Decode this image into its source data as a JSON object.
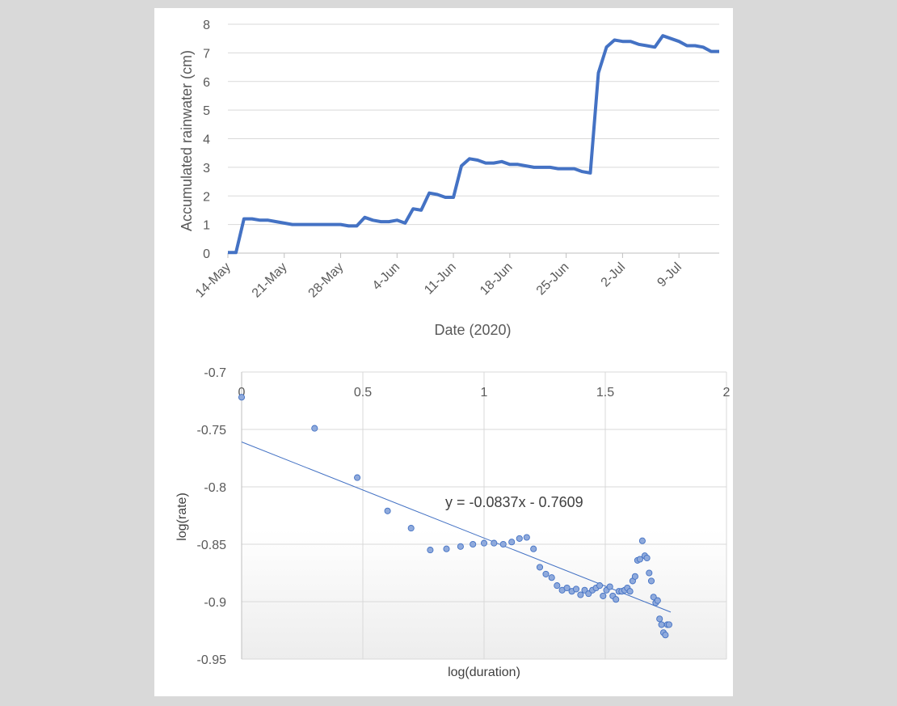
{
  "chart_data": [
    {
      "type": "line",
      "xlabel": "Date (2020)",
      "ylabel": "Accumulated rainwater (cm)",
      "ylim": [
        0,
        8
      ],
      "yticks": [
        "0",
        "1",
        "2",
        "3",
        "4",
        "5",
        "6",
        "7",
        "8"
      ],
      "xticks": [
        "14-May",
        "21-May",
        "28-May",
        "4-Jun",
        "11-Jun",
        "18-Jun",
        "25-Jun",
        "2-Jul",
        "9-Jul"
      ],
      "xtick_dates": [
        "2020-05-14",
        "2020-05-21",
        "2020-05-28",
        "2020-06-04",
        "2020-06-11",
        "2020-06-18",
        "2020-06-25",
        "2020-07-02",
        "2020-07-09"
      ],
      "xlim": [
        "2020-05-14",
        "2020-07-14"
      ],
      "grid": true,
      "color": "#4472c4",
      "series": [
        {
          "x": [
            "2020-05-14",
            "2020-05-15",
            "2020-05-16",
            "2020-05-17",
            "2020-05-18",
            "2020-05-19",
            "2020-05-20",
            "2020-05-21",
            "2020-05-22",
            "2020-05-23",
            "2020-05-24",
            "2020-05-25",
            "2020-05-26",
            "2020-05-27",
            "2020-05-28",
            "2020-05-29",
            "2020-05-30",
            "2020-05-31",
            "2020-06-01",
            "2020-06-02",
            "2020-06-03",
            "2020-06-04",
            "2020-06-05",
            "2020-06-06",
            "2020-06-07",
            "2020-06-08",
            "2020-06-09",
            "2020-06-10",
            "2020-06-11",
            "2020-06-12",
            "2020-06-13",
            "2020-06-14",
            "2020-06-15",
            "2020-06-16",
            "2020-06-17",
            "2020-06-18",
            "2020-06-19",
            "2020-06-20",
            "2020-06-21",
            "2020-06-22",
            "2020-06-23",
            "2020-06-24",
            "2020-06-25",
            "2020-06-26",
            "2020-06-27",
            "2020-06-28",
            "2020-06-29",
            "2020-06-30",
            "2020-07-01",
            "2020-07-02",
            "2020-07-03",
            "2020-07-04",
            "2020-07-05",
            "2020-07-06",
            "2020-07-07",
            "2020-07-08",
            "2020-07-09",
            "2020-07-10",
            "2020-07-11",
            "2020-07-12",
            "2020-07-13",
            "2020-07-14"
          ],
          "y": [
            0.02,
            0.02,
            1.2,
            1.2,
            1.15,
            1.15,
            1.1,
            1.05,
            1.0,
            1.0,
            1.0,
            1.0,
            1.0,
            1.0,
            1.0,
            0.95,
            0.95,
            1.25,
            1.15,
            1.1,
            1.1,
            1.15,
            1.05,
            1.55,
            1.5,
            2.1,
            2.05,
            1.95,
            1.95,
            3.05,
            3.3,
            3.25,
            3.15,
            3.15,
            3.2,
            3.1,
            3.1,
            3.05,
            3.0,
            3.0,
            3.0,
            2.95,
            2.95,
            2.95,
            2.85,
            2.8,
            6.3,
            7.2,
            7.45,
            7.4,
            7.4,
            7.3,
            7.25,
            7.2,
            7.6,
            7.5,
            7.4,
            7.25,
            7.25,
            7.2,
            7.05,
            7.05
          ]
        }
      ]
    },
    {
      "type": "scatter",
      "xlabel": "log(duration)",
      "ylabel": "log(rate)",
      "xlim": [
        0,
        2
      ],
      "ylim": [
        -0.95,
        -0.7
      ],
      "xticks": [
        "0",
        "0.5",
        "1",
        "1.5",
        "2"
      ],
      "yticks": [
        "-0.7",
        "-0.75",
        "-0.8",
        "-0.85",
        "-0.9",
        "-0.95"
      ],
      "grid": true,
      "marker_color": "#8faadc",
      "marker_edge": "#4472c4",
      "trendline": {
        "slope": -0.0837,
        "intercept": -0.7609,
        "label": "y = -0.0837x - 0.7609",
        "x_range": [
          0,
          1.77
        ]
      },
      "points": {
        "x": [
          0,
          0.301,
          0.477,
          0.602,
          0.699,
          0.778,
          0.845,
          0.903,
          0.954,
          1.0,
          1.041,
          1.079,
          1.114,
          1.146,
          1.176,
          1.204,
          1.23,
          1.255,
          1.279,
          1.301,
          1.322,
          1.342,
          1.362,
          1.38,
          1.398,
          1.415,
          1.431,
          1.447,
          1.462,
          1.477,
          1.491,
          1.505,
          1.519,
          1.531,
          1.544,
          1.556,
          1.568,
          1.58,
          1.591,
          1.602,
          1.613,
          1.623,
          1.633,
          1.643,
          1.653,
          1.663,
          1.672,
          1.681,
          1.69,
          1.699,
          1.708,
          1.716,
          1.724,
          1.732,
          1.74,
          1.748,
          1.756,
          1.763
        ],
        "y": [
          -0.722,
          -0.749,
          -0.792,
          -0.821,
          -0.836,
          -0.855,
          -0.854,
          -0.852,
          -0.85,
          -0.849,
          -0.849,
          -0.85,
          -0.848,
          -0.845,
          -0.844,
          -0.854,
          -0.87,
          -0.876,
          -0.879,
          -0.886,
          -0.89,
          -0.888,
          -0.891,
          -0.889,
          -0.894,
          -0.89,
          -0.893,
          -0.89,
          -0.888,
          -0.886,
          -0.895,
          -0.89,
          -0.887,
          -0.895,
          -0.898,
          -0.891,
          -0.891,
          -0.89,
          -0.888,
          -0.891,
          -0.882,
          -0.878,
          -0.864,
          -0.863,
          -0.847,
          -0.86,
          -0.862,
          -0.875,
          -0.882,
          -0.896,
          -0.901,
          -0.899,
          -0.915,
          -0.92,
          -0.927,
          -0.929,
          -0.92,
          -0.92
        ]
      }
    }
  ]
}
